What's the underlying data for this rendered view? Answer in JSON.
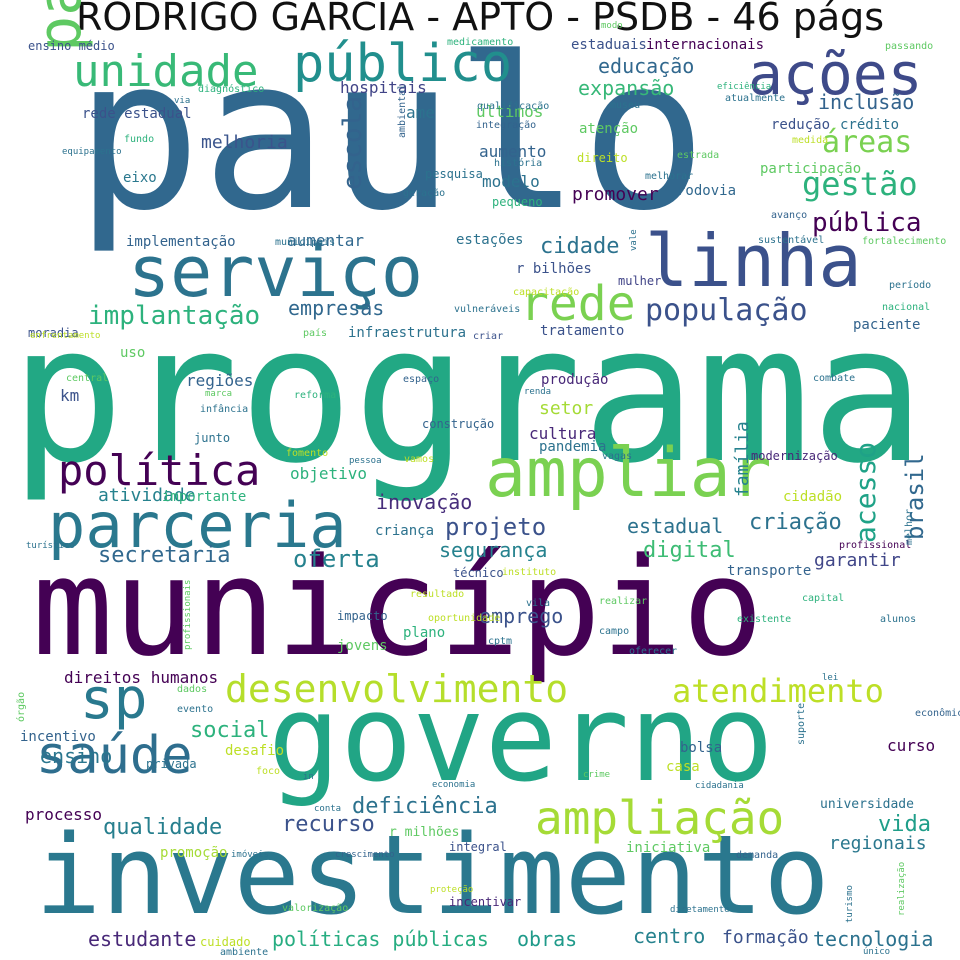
{
  "title": "RODRIGO GARCIA - APTO - PSDB - 46 págs",
  "words": [
    {
      "text": "paulo",
      "color": "#31688e",
      "v": false
    },
    {
      "text": "programa",
      "color": "#22a884",
      "v": false
    },
    {
      "text": "município",
      "color": "#440154",
      "v": false
    },
    {
      "text": "governo",
      "color": "#21a585",
      "v": false
    },
    {
      "text": "investimento",
      "color": "#2a788e",
      "v": false
    },
    {
      "text": "serviço",
      "color": "#2c738e",
      "v": false
    },
    {
      "text": "linha",
      "color": "#3b518b",
      "v": false
    },
    {
      "text": "ações",
      "color": "#3e4a89",
      "v": false
    },
    {
      "text": "paulista",
      "color": "#5ec962",
      "v": true
    },
    {
      "text": "público",
      "color": "#218f8d",
      "v": false
    },
    {
      "text": "unidade",
      "color": "#38b977",
      "v": false
    },
    {
      "text": "rede",
      "color": "#7ad151",
      "v": false
    },
    {
      "text": "ampliar",
      "color": "#7ad151",
      "v": false
    },
    {
      "text": "parceria",
      "color": "#2a788e",
      "v": false
    },
    {
      "text": "política",
      "color": "#440154",
      "v": false
    },
    {
      "text": "sp",
      "color": "#29798e",
      "v": false
    },
    {
      "text": "saúde",
      "color": "#2e6e8e",
      "v": false
    },
    {
      "text": "desenvolvimento",
      "color": "#b5de2b",
      "v": false
    },
    {
      "text": "atendimento",
      "color": "#bddf26",
      "v": false
    },
    {
      "text": "ampliação",
      "color": "#a5db36",
      "v": false
    },
    {
      "text": "gestão",
      "color": "#2db27d",
      "v": false
    },
    {
      "text": "população",
      "color": "#3b528b",
      "v": false
    },
    {
      "text": "implantação",
      "color": "#2db27d",
      "v": false
    },
    {
      "text": "escola",
      "color": "#33638d",
      "v": true
    },
    {
      "text": "acesso",
      "color": "#1fa287",
      "v": true
    },
    {
      "text": "projeto",
      "color": "#3b528b",
      "v": false
    },
    {
      "text": "secretaria",
      "color": "#31688e",
      "v": false
    },
    {
      "text": "oferta",
      "color": "#26828e",
      "v": false
    },
    {
      "text": "digital",
      "color": "#3dbc74",
      "v": false
    },
    {
      "text": "social",
      "color": "#2db27d",
      "v": false
    },
    {
      "text": "qualidade",
      "color": "#277f8e",
      "v": false
    },
    {
      "text": "recurso",
      "color": "#3b528b",
      "v": false
    },
    {
      "text": "deficiência",
      "color": "#2c728e",
      "v": false
    },
    {
      "text": "vida",
      "color": "#1f9e89",
      "v": false
    },
    {
      "text": "ensino",
      "color": "#2a768e",
      "v": false
    },
    {
      "text": "estudante",
      "color": "#482878",
      "v": false
    },
    {
      "text": "políticas públicas",
      "color": "#27ad81",
      "v": false
    },
    {
      "text": "obras",
      "color": "#1f9a8a",
      "v": false
    },
    {
      "text": "centro",
      "color": "#26828e",
      "v": false
    },
    {
      "text": "formação",
      "color": "#3b528b",
      "v": false
    },
    {
      "text": "tecnologia",
      "color": "#2c728e",
      "v": false
    },
    {
      "text": "regionais",
      "color": "#2a788e",
      "v": false
    },
    {
      "text": "educação",
      "color": "#31688e",
      "v": false
    },
    {
      "text": "expansão",
      "color": "#37b878",
      "v": false
    },
    {
      "text": "inclusão",
      "color": "#33638d",
      "v": false
    },
    {
      "text": "áreas",
      "color": "#7ad151",
      "v": false
    },
    {
      "text": "pública",
      "color": "#440154",
      "v": false
    },
    {
      "text": "cidade",
      "color": "#2c728e",
      "v": false
    },
    {
      "text": "empresas",
      "color": "#31688e",
      "v": false
    },
    {
      "text": "brasil",
      "color": "#31688e",
      "v": true
    },
    {
      "text": "inovação",
      "color": "#472d7b",
      "v": false
    },
    {
      "text": "segurança",
      "color": "#26828e",
      "v": false
    },
    {
      "text": "criação",
      "color": "#2c728e",
      "v": false
    },
    {
      "text": "estadual",
      "color": "#2c728e",
      "v": false
    },
    {
      "text": "emprego",
      "color": "#3b528b",
      "v": false
    },
    {
      "text": "garantir",
      "color": "#404688",
      "v": false
    },
    {
      "text": "família",
      "color": "#26828e",
      "v": true
    },
    {
      "text": "atividade",
      "color": "#26828e",
      "v": false
    },
    {
      "text": "hospitais",
      "color": "#414487",
      "v": false
    },
    {
      "text": "últimos",
      "color": "#5ec962",
      "v": false
    },
    {
      "text": "ame",
      "color": "#2c728e",
      "v": false
    },
    {
      "text": "melhoria",
      "color": "#3a548c",
      "v": false
    },
    {
      "text": "aumento",
      "color": "#33638d",
      "v": false
    },
    {
      "text": "modelo",
      "color": "#2c728e",
      "v": false
    },
    {
      "text": "promover",
      "color": "#440154",
      "v": false
    },
    {
      "text": "rodovia",
      "color": "#31688e",
      "v": false
    },
    {
      "text": "eixo",
      "color": "#2a788e",
      "v": false
    },
    {
      "text": "implementação",
      "color": "#33638d",
      "v": false
    },
    {
      "text": "aumentar",
      "color": "#31688e",
      "v": false
    },
    {
      "text": "estações",
      "color": "#2c728e",
      "v": false
    },
    {
      "text": "r bilhões",
      "color": "#3b528b",
      "v": false
    },
    {
      "text": "mulher",
      "color": "#414487",
      "v": false
    },
    {
      "text": "infraestrutura",
      "color": "#2c728e",
      "v": false
    },
    {
      "text": "tratamento",
      "color": "#3b528b",
      "v": false
    },
    {
      "text": "paciente",
      "color": "#33638d",
      "v": false
    },
    {
      "text": "regiões",
      "color": "#33638d",
      "v": false
    },
    {
      "text": "km",
      "color": "#3b528b",
      "v": false
    },
    {
      "text": "uso",
      "color": "#5ec962",
      "v": false
    },
    {
      "text": "produção",
      "color": "#482878",
      "v": false
    },
    {
      "text": "setor",
      "color": "#a5db36",
      "v": false
    },
    {
      "text": "cultura",
      "color": "#482878",
      "v": false
    },
    {
      "text": "pandemia",
      "color": "#2c728e",
      "v": false
    },
    {
      "text": "construção",
      "color": "#33638d",
      "v": false
    },
    {
      "text": "objetivo",
      "color": "#2db27d",
      "v": false
    },
    {
      "text": "importante",
      "color": "#2db27d",
      "v": false
    },
    {
      "text": "modernização",
      "color": "#482878",
      "v": false
    },
    {
      "text": "cidadão",
      "color": "#bddf26",
      "v": false
    },
    {
      "text": "criança",
      "color": "#2c728e",
      "v": false
    },
    {
      "text": "técnico",
      "color": "#3b528b",
      "v": false
    },
    {
      "text": "transporte",
      "color": "#33638d",
      "v": false
    },
    {
      "text": "universidade",
      "color": "#2c728e",
      "v": false
    },
    {
      "text": "direitos humanos",
      "color": "#440154",
      "v": false
    },
    {
      "text": "incentivo",
      "color": "#33638d",
      "v": false
    },
    {
      "text": "desafio",
      "color": "#bddf26",
      "v": false
    },
    {
      "text": "processo",
      "color": "#440154",
      "v": false
    },
    {
      "text": "promoção",
      "color": "#a5db36",
      "v": false
    },
    {
      "text": "bolsa",
      "color": "#33638d",
      "v": false
    },
    {
      "text": "casa",
      "color": "#bddf26",
      "v": false
    },
    {
      "text": "curso",
      "color": "#440154",
      "v": false
    },
    {
      "text": "jovens",
      "color": "#5ec962",
      "v": false
    },
    {
      "text": "plano",
      "color": "#2db27d",
      "v": false
    },
    {
      "text": "impacto",
      "color": "#33638d",
      "v": false
    },
    {
      "text": "integral",
      "color": "#3b528b",
      "v": false
    },
    {
      "text": "iniciativa",
      "color": "#5ec962",
      "v": false
    },
    {
      "text": "r milhões",
      "color": "#5ec962",
      "v": false
    },
    {
      "text": "incentivar",
      "color": "#482878",
      "v": false
    },
    {
      "text": "ensino médio",
      "color": "#3b528b",
      "v": false
    },
    {
      "text": "medicamento",
      "color": "#2db27d",
      "v": false
    },
    {
      "text": "estaduais",
      "color": "#3b528b",
      "v": false
    },
    {
      "text": "internacionais",
      "color": "#440154",
      "v": false
    },
    {
      "text": "passando",
      "color": "#5ec962",
      "v": false
    },
    {
      "text": "rede estadual",
      "color": "#3b528b",
      "v": false
    },
    {
      "text": "diagnóstico",
      "color": "#2db27d",
      "v": false
    },
    {
      "text": "qualificação",
      "color": "#2c728e",
      "v": false
    },
    {
      "text": "museu",
      "color": "#2c728e",
      "v": false
    },
    {
      "text": "atualmente",
      "color": "#2c728e",
      "v": false
    },
    {
      "text": "eficiência",
      "color": "#2db27d",
      "v": false
    },
    {
      "text": "integração",
      "color": "#33638d",
      "v": false
    },
    {
      "text": "atenção",
      "color": "#5ec962",
      "v": false
    },
    {
      "text": "redução",
      "color": "#3b528b",
      "v": false
    },
    {
      "text": "crédito",
      "color": "#2c728e",
      "v": false
    },
    {
      "text": "participação",
      "color": "#5ec962",
      "v": false
    },
    {
      "text": "história",
      "color": "#2c728e",
      "v": false
    },
    {
      "text": "direito",
      "color": "#bddf26",
      "v": false
    },
    {
      "text": "pesquisa",
      "color": "#2c728e",
      "v": false
    },
    {
      "text": "pequeno",
      "color": "#2db27d",
      "v": false
    },
    {
      "text": "melhorar",
      "color": "#2c728e",
      "v": false
    },
    {
      "text": "estrada",
      "color": "#5ec962",
      "v": false
    },
    {
      "text": "sustentável",
      "color": "#2c728e",
      "v": false
    },
    {
      "text": "avanço",
      "color": "#33638d",
      "v": false
    },
    {
      "text": "fortalecimento",
      "color": "#5ec962",
      "v": false
    },
    {
      "text": "período",
      "color": "#2c728e",
      "v": false
    },
    {
      "text": "nacional",
      "color": "#2db27d",
      "v": false
    },
    {
      "text": "moradia",
      "color": "#3b528b",
      "v": false
    },
    {
      "text": "capacitação",
      "color": "#bddf26",
      "v": false
    },
    {
      "text": "vulneráveis",
      "color": "#2c728e",
      "v": false
    },
    {
      "text": "país",
      "color": "#5ec962",
      "v": false
    },
    {
      "text": "criar",
      "color": "#3b528b",
      "v": false
    },
    {
      "text": "enfrentamento",
      "color": "#bddf26",
      "v": false
    },
    {
      "text": "municipais",
      "color": "#2c728e",
      "v": false
    },
    {
      "text": "fundo",
      "color": "#2db27d",
      "v": false
    },
    {
      "text": "geração",
      "color": "#2c728e",
      "v": false
    },
    {
      "text": "medida",
      "color": "#bddf26",
      "v": false
    },
    {
      "text": "central",
      "color": "#5ec962",
      "v": false
    },
    {
      "text": "marca",
      "color": "#5ec962",
      "v": false
    },
    {
      "text": "infância",
      "color": "#2c728e",
      "v": false
    },
    {
      "text": "reforma",
      "color": "#2db27d",
      "v": false
    },
    {
      "text": "espaço",
      "color": "#33638d",
      "v": false
    },
    {
      "text": "renda",
      "color": "#2c728e",
      "v": false
    },
    {
      "text": "junto",
      "color": "#2c728e",
      "v": false
    },
    {
      "text": "fomento",
      "color": "#bddf26",
      "v": false
    },
    {
      "text": "pessoa",
      "color": "#2c728e",
      "v": false
    },
    {
      "text": "vamos",
      "color": "#bddf26",
      "v": false
    },
    {
      "text": "vagas",
      "color": "#2c728e",
      "v": false
    },
    {
      "text": "combate",
      "color": "#2c728e",
      "v": false
    },
    {
      "text": "profissional",
      "color": "#440154",
      "v": false
    },
    {
      "text": "instituto",
      "color": "#bddf26",
      "v": false
    },
    {
      "text": "resultado",
      "color": "#bddf26",
      "v": false
    },
    {
      "text": "realizar",
      "color": "#5ec962",
      "v": false
    },
    {
      "text": "capital",
      "color": "#2db27d",
      "v": false
    },
    {
      "text": "vila",
      "color": "#2c728e",
      "v": false
    },
    {
      "text": "oportunidade",
      "color": "#bddf26",
      "v": false
    },
    {
      "text": "campo",
      "color": "#2c728e",
      "v": false
    },
    {
      "text": "existente",
      "color": "#2db27d",
      "v": false
    },
    {
      "text": "alunos",
      "color": "#2c728e",
      "v": false
    },
    {
      "text": "cptm",
      "color": "#2c728e",
      "v": false
    },
    {
      "text": "oferecer",
      "color": "#2c728e",
      "v": false
    },
    {
      "text": "lei",
      "color": "#2c728e",
      "v": false
    },
    {
      "text": "dados",
      "color": "#5ec962",
      "v": false
    },
    {
      "text": "evento",
      "color": "#2c728e",
      "v": false
    },
    {
      "text": "econômico",
      "color": "#33638d",
      "v": false
    },
    {
      "text": "privada",
      "color": "#2c728e",
      "v": false
    },
    {
      "text": "foco",
      "color": "#bddf26",
      "v": false
    },
    {
      "text": "in",
      "color": "#2c728e",
      "v": false
    },
    {
      "text": "economia",
      "color": "#2c728e",
      "v": false
    },
    {
      "text": "crime",
      "color": "#5ec962",
      "v": false
    },
    {
      "text": "cidadania",
      "color": "#2c728e",
      "v": false
    },
    {
      "text": "conta",
      "color": "#2c728e",
      "v": false
    },
    {
      "text": "imóveis",
      "color": "#2c728e",
      "v": false
    },
    {
      "text": "crescimento",
      "color": "#33638d",
      "v": false
    },
    {
      "text": "demanda",
      "color": "#33638d",
      "v": false
    },
    {
      "text": "proteção",
      "color": "#bddf26",
      "v": false
    },
    {
      "text": "valorização",
      "color": "#5ec962",
      "v": false
    },
    {
      "text": "diretamente",
      "color": "#2c728e",
      "v": false
    },
    {
      "text": "cuidado",
      "color": "#bddf26",
      "v": false
    },
    {
      "text": "ambiente",
      "color": "#2c728e",
      "v": false
    },
    {
      "text": "único",
      "color": "#2c728e",
      "v": false
    },
    {
      "text": "turístico",
      "color": "#2c728e",
      "v": false
    },
    {
      "text": "via",
      "color": "#2c728e",
      "v": false
    },
    {
      "text": "modo",
      "color": "#5ec962",
      "v": false
    },
    {
      "text": "equipamento",
      "color": "#2c728e",
      "v": false
    },
    {
      "text": "ambiental",
      "color": "#33638d",
      "v": true
    },
    {
      "text": "vale",
      "color": "#2c728e",
      "v": true
    },
    {
      "text": "melhor",
      "color": "#2c728e",
      "v": true
    },
    {
      "text": "profissionais",
      "color": "#5ec962",
      "v": true
    },
    {
      "text": "órgão",
      "color": "#5ec962",
      "v": true
    },
    {
      "text": "suporte",
      "color": "#2c728e",
      "v": true
    },
    {
      "text": "realização",
      "color": "#5ec962",
      "v": true
    },
    {
      "text": "turismo",
      "color": "#2c728e",
      "v": true
    },
    {
      "text": "sociedade",
      "color": "#2c728e",
      "v": true
    }
  ]
}
